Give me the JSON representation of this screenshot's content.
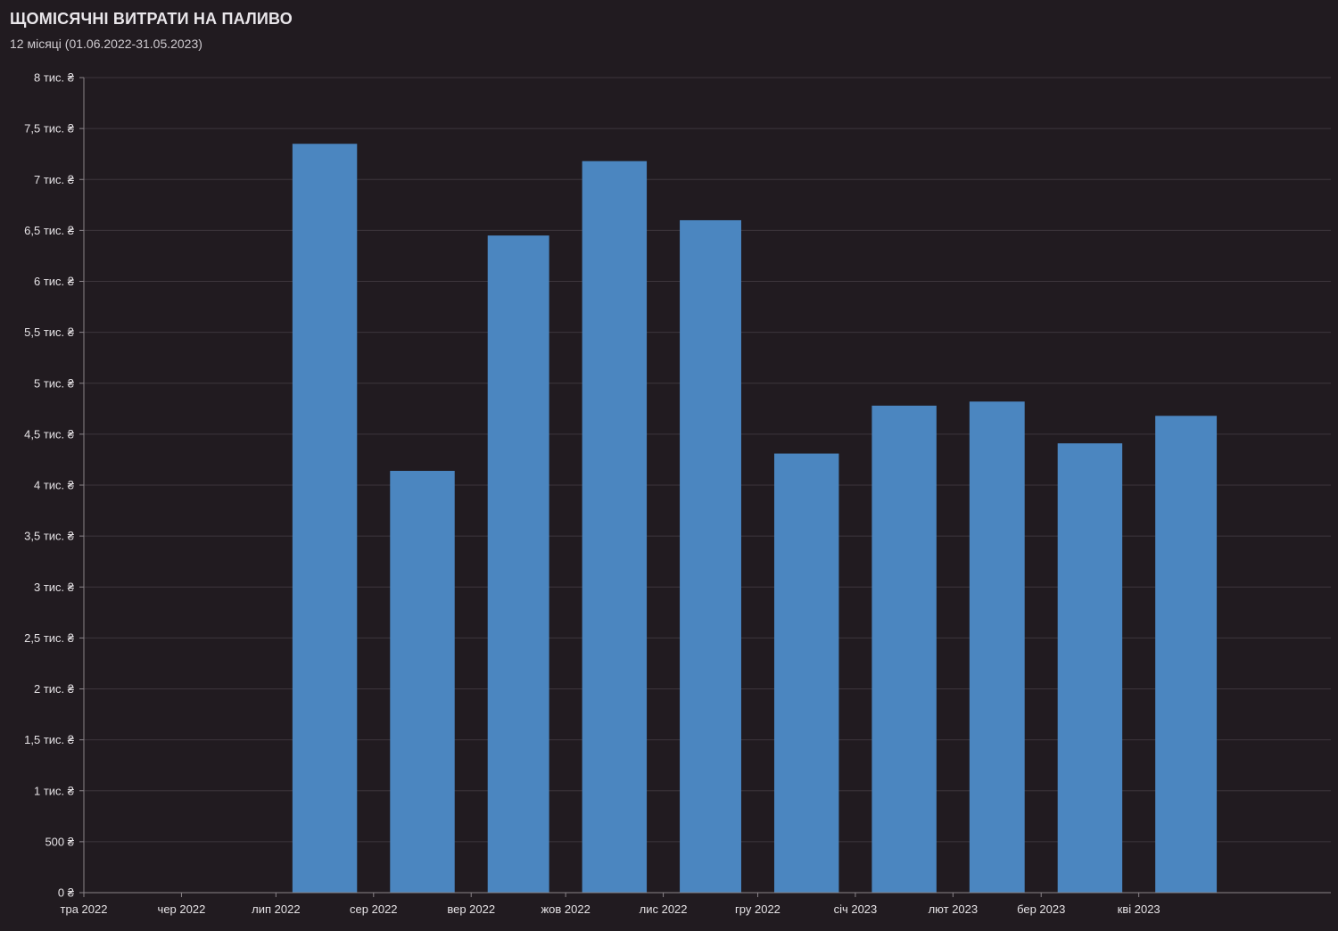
{
  "header": {
    "title": "ЩОМІСЯЧНІ ВИТРАТИ НА ПАЛИВО",
    "subtitle": "12 місяці (01.06.2022-31.05.2023)"
  },
  "chart_data": {
    "type": "bar",
    "title": "ЩОМІСЯЧНІ ВИТРАТИ НА ПАЛИВО",
    "subtitle": "12 місяці (01.06.2022-31.05.2023)",
    "xlabel": "",
    "ylabel": "",
    "ylim": [
      0,
      8000
    ],
    "grid": true,
    "legend": "none",
    "bar_color": "#4b86c0",
    "background_color": "#211b20",
    "y_ticks": [
      {
        "value": 0,
        "label": "0 ₴"
      },
      {
        "value": 500,
        "label": "500 ₴"
      },
      {
        "value": 1000,
        "label": "1 тис. ₴"
      },
      {
        "value": 1500,
        "label": "1,5 тис. ₴"
      },
      {
        "value": 2000,
        "label": "2 тис. ₴"
      },
      {
        "value": 2500,
        "label": "2,5 тис. ₴"
      },
      {
        "value": 3000,
        "label": "3 тис. ₴"
      },
      {
        "value": 3500,
        "label": "3,5 тис. ₴"
      },
      {
        "value": 4000,
        "label": "4 тис. ₴"
      },
      {
        "value": 4500,
        "label": "4,5 тис. ₴"
      },
      {
        "value": 5000,
        "label": "5 тис. ₴"
      },
      {
        "value": 5500,
        "label": "5,5 тис. ₴"
      },
      {
        "value": 6000,
        "label": "6 тис. ₴"
      },
      {
        "value": 6500,
        "label": "6,5 тис. ₴"
      },
      {
        "value": 7000,
        "label": "7 тис. ₴"
      },
      {
        "value": 7500,
        "label": "7,5 тис. ₴"
      },
      {
        "value": 8000,
        "label": "8 тис. ₴"
      }
    ],
    "x_ticks": [
      {
        "date": "2022-05-01",
        "label": "тра 2022"
      },
      {
        "date": "2022-06-01",
        "label": "чер 2022"
      },
      {
        "date": "2022-07-01",
        "label": "лип 2022"
      },
      {
        "date": "2022-08-01",
        "label": "сер 2022"
      },
      {
        "date": "2022-09-01",
        "label": "вер 2022"
      },
      {
        "date": "2022-10-01",
        "label": "жов 2022"
      },
      {
        "date": "2022-11-01",
        "label": "лис 2022"
      },
      {
        "date": "2022-12-01",
        "label": "гру 2022"
      },
      {
        "date": "2023-01-01",
        "label": "січ 2023"
      },
      {
        "date": "2023-02-01",
        "label": "лют 2023"
      },
      {
        "date": "2023-03-01",
        "label": "бер 2023"
      },
      {
        "date": "2023-04-01",
        "label": "кві 2023"
      }
    ],
    "x_range": [
      "2022-05-01",
      "2023-05-31"
    ],
    "bars": [
      {
        "month": "2022-07",
        "value": 7350
      },
      {
        "month": "2022-08",
        "value": 4140
      },
      {
        "month": "2022-09",
        "value": 6450
      },
      {
        "month": "2022-10",
        "value": 7180
      },
      {
        "month": "2022-11",
        "value": 6600
      },
      {
        "month": "2022-12",
        "value": 4310
      },
      {
        "month": "2023-01",
        "value": 4780
      },
      {
        "month": "2023-02",
        "value": 4820
      },
      {
        "month": "2023-03",
        "value": 4410
      },
      {
        "month": "2023-04",
        "value": 4680
      }
    ]
  }
}
